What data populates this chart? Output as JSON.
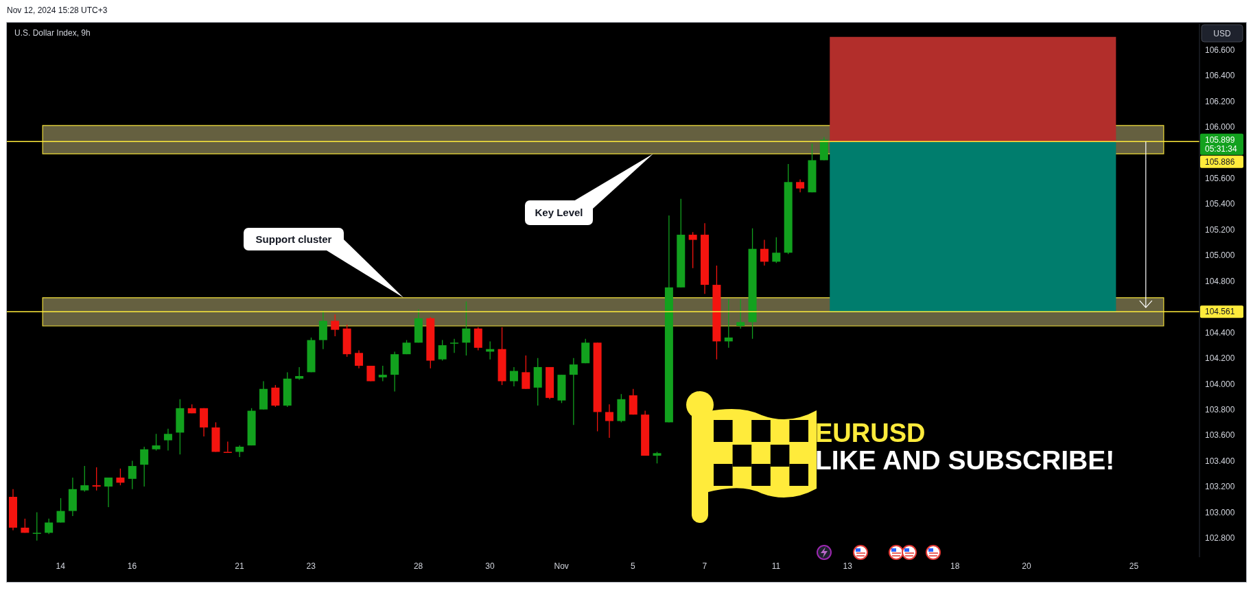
{
  "chart_data": {
    "type": "candlestick",
    "title": "U.S. Dollar Index, 9h",
    "annotations": [
      "Nov 12, 2024 15:28 UTC+3",
      "USD",
      "Support cluster",
      "Key Level",
      "EURUSD",
      "LIKE AND SUBSCRIBE!",
      "105.899",
      "05:31:34"
    ],
    "categories": [
      null,
      null,
      null,
      null,
      "14",
      null,
      null,
      null,
      null,
      null,
      "16",
      null,
      null,
      null,
      null,
      null,
      null,
      null,
      null,
      "21",
      null,
      null,
      null,
      null,
      null,
      "23",
      null,
      null,
      null,
      null,
      null,
      null,
      null,
      null,
      "28",
      null,
      null,
      null,
      null,
      null,
      "30",
      null,
      null,
      null,
      null,
      null,
      "Nov",
      null,
      null,
      null,
      null,
      null,
      "5",
      null,
      null,
      null,
      null,
      null,
      "7",
      null,
      null,
      null,
      null,
      null,
      "11",
      null,
      null,
      null,
      null,
      null,
      "13",
      null,
      null,
      null,
      null,
      null,
      null,
      null,
      null,
      "18",
      null,
      null,
      null,
      null,
      null,
      "20",
      null,
      null,
      null,
      null,
      null,
      null,
      null,
      null,
      "25",
      null,
      null,
      null,
      null,
      null
    ],
    "ohlc": [
      [
        103.12,
        103.18,
        102.86,
        102.88
      ],
      [
        102.88,
        102.95,
        102.84,
        102.84
      ],
      [
        102.84,
        103.0,
        102.78,
        102.84
      ],
      [
        102.84,
        102.95,
        102.83,
        102.92
      ],
      [
        102.92,
        103.11,
        102.92,
        103.01
      ],
      [
        103.01,
        103.27,
        102.97,
        103.18
      ],
      [
        103.17,
        103.36,
        103.16,
        103.21
      ],
      [
        103.21,
        103.35,
        103.17,
        103.2
      ],
      [
        103.2,
        103.27,
        103.04,
        103.27
      ],
      [
        103.27,
        103.34,
        103.21,
        103.23
      ],
      [
        103.26,
        103.4,
        103.18,
        103.36
      ],
      [
        103.37,
        103.51,
        103.2,
        103.49
      ],
      [
        103.49,
        103.61,
        103.48,
        103.52
      ],
      [
        103.56,
        103.65,
        103.48,
        103.61
      ],
      [
        103.62,
        103.88,
        103.45,
        103.81
      ],
      [
        103.81,
        103.84,
        103.77,
        103.77
      ],
      [
        103.81,
        103.81,
        103.59,
        103.66
      ],
      [
        103.66,
        103.7,
        103.47,
        103.47
      ],
      [
        103.47,
        103.55,
        103.47,
        103.47
      ],
      [
        103.47,
        103.52,
        103.43,
        103.51
      ],
      [
        103.52,
        103.81,
        103.52,
        103.79
      ],
      [
        103.8,
        104.02,
        103.8,
        103.96
      ],
      [
        103.97,
        103.99,
        103.82,
        103.83
      ],
      [
        103.83,
        104.09,
        103.82,
        104.04
      ],
      [
        104.04,
        104.13,
        104.03,
        104.06
      ],
      [
        104.09,
        104.36,
        104.09,
        104.34
      ],
      [
        104.34,
        104.57,
        104.27,
        104.49
      ],
      [
        104.49,
        104.54,
        104.37,
        104.42
      ],
      [
        104.43,
        104.46,
        104.21,
        104.23
      ],
      [
        104.24,
        104.26,
        104.12,
        104.14
      ],
      [
        104.14,
        104.14,
        104.02,
        104.02
      ],
      [
        104.05,
        104.14,
        104.02,
        104.07
      ],
      [
        104.07,
        104.25,
        103.94,
        104.23
      ],
      [
        104.23,
        104.34,
        104.23,
        104.32
      ],
      [
        104.32,
        104.58,
        104.32,
        104.51
      ],
      [
        104.51,
        104.52,
        104.12,
        104.18
      ],
      [
        104.19,
        104.34,
        104.18,
        104.3
      ],
      [
        104.32,
        104.35,
        104.24,
        104.32
      ],
      [
        104.32,
        104.64,
        104.22,
        104.43
      ],
      [
        104.43,
        104.44,
        104.26,
        104.28
      ],
      [
        104.25,
        104.33,
        104.19,
        104.27
      ],
      [
        104.27,
        104.44,
        103.99,
        104.02
      ],
      [
        104.02,
        104.13,
        103.98,
        104.1
      ],
      [
        104.09,
        104.22,
        103.96,
        103.96
      ],
      [
        103.97,
        104.2,
        103.83,
        104.13
      ],
      [
        104.13,
        104.13,
        103.88,
        103.89
      ],
      [
        103.87,
        104.07,
        103.85,
        104.07
      ],
      [
        104.07,
        104.2,
        103.68,
        104.15
      ],
      [
        104.16,
        104.35,
        104.16,
        104.32
      ],
      [
        104.32,
        104.32,
        103.63,
        103.78
      ],
      [
        103.78,
        103.84,
        103.58,
        103.71
      ],
      [
        103.71,
        103.92,
        103.7,
        103.88
      ],
      [
        103.91,
        103.96,
        103.76,
        103.76
      ],
      [
        103.76,
        103.79,
        103.44,
        103.44
      ],
      [
        103.44,
        103.47,
        103.38,
        103.46
      ],
      [
        103.7,
        105.31,
        103.7,
        104.75
      ],
      [
        104.75,
        105.44,
        104.75,
        105.16
      ],
      [
        105.16,
        105.18,
        104.9,
        105.12
      ],
      [
        105.16,
        105.25,
        104.7,
        104.77
      ],
      [
        104.77,
        104.92,
        104.19,
        104.33
      ],
      [
        104.33,
        104.66,
        104.28,
        104.36
      ],
      [
        104.45,
        104.66,
        104.43,
        104.48
      ],
      [
        104.48,
        105.21,
        104.35,
        105.05
      ],
      [
        105.05,
        105.12,
        104.92,
        104.95
      ],
      [
        104.95,
        105.14,
        104.94,
        105.02
      ],
      [
        105.02,
        105.71,
        105.01,
        105.57
      ],
      [
        105.57,
        105.59,
        105.49,
        105.52
      ],
      [
        105.49,
        105.87,
        105.49,
        105.74
      ],
      [
        105.74,
        105.92,
        105.74,
        105.899
      ],
      null,
      null,
      null,
      null,
      null,
      null,
      null,
      null,
      null,
      null,
      null,
      null,
      null,
      null,
      null,
      null,
      null,
      null,
      null,
      null,
      null,
      null,
      null,
      null,
      null,
      null,
      null,
      null,
      null,
      null,
      null
    ],
    "colors": [
      "#f4140f",
      "#f4140f",
      "#12a11e",
      "#12a11e",
      "#12a11e",
      "#12a11e",
      "#12a11e",
      "#f4140f",
      "#12a11e",
      "#f4140f",
      "#12a11e",
      "#12a11e",
      "#12a11e",
      "#12a11e",
      "#12a11e",
      "#f4140f",
      "#f4140f",
      "#f4140f",
      "#f4140f",
      "#12a11e",
      "#12a11e",
      "#12a11e",
      "#f4140f",
      "#12a11e",
      "#12a11e",
      "#12a11e",
      "#12a11e",
      "#f4140f",
      "#f4140f",
      "#f4140f",
      "#f4140f",
      "#12a11e",
      "#12a11e",
      "#12a11e",
      "#12a11e",
      "#f4140f",
      "#12a11e",
      "#12a11e",
      "#12a11e",
      "#f4140f",
      "#12a11e",
      "#f4140f",
      "#12a11e",
      "#f4140f",
      "#12a11e",
      "#f4140f",
      "#12a11e",
      "#12a11e",
      "#12a11e",
      "#f4140f",
      "#f4140f",
      "#12a11e",
      "#f4140f",
      "#f4140f",
      "#12a11e",
      "#12a11e",
      "#12a11e",
      "#f4140f",
      "#f4140f",
      "#f4140f",
      "#12a11e",
      "#12a11e",
      "#12a11e",
      "#f4140f",
      "#12a11e",
      "#12a11e",
      "#f4140f",
      "#12a11e",
      "#12a11e",
      null,
      null,
      null,
      null,
      null,
      null,
      null,
      null,
      null,
      null,
      null,
      null,
      null,
      null,
      null,
      null,
      null,
      null,
      null,
      null,
      null,
      null,
      null,
      null,
      null,
      null,
      null,
      null,
      null,
      null,
      null
    ],
    "ylim": [
      102.65,
      106.8
    ],
    "yticks": [
      {
        "value": 102.8,
        "label": "102.800"
      },
      {
        "value": 103.0,
        "label": "103.000"
      },
      {
        "value": 103.2,
        "label": "103.200"
      },
      {
        "value": 103.4,
        "label": "103.400"
      },
      {
        "value": 103.6,
        "label": "103.600"
      },
      {
        "value": 103.8,
        "label": "103.800"
      },
      {
        "value": 104.0,
        "label": "104.000"
      },
      {
        "value": 104.2,
        "label": "104.200"
      },
      {
        "value": 104.4,
        "label": "104.400"
      },
      {
        "value": 104.8,
        "label": "104.800"
      },
      {
        "value": 105.0,
        "label": "105.000"
      },
      {
        "value": 105.2,
        "label": "105.200"
      },
      {
        "value": 105.4,
        "label": "105.400"
      },
      {
        "value": 105.6,
        "label": "105.600"
      },
      {
        "value": 106.0,
        "label": "106.000"
      },
      {
        "value": 106.2,
        "label": "106.200"
      },
      {
        "value": 106.4,
        "label": "106.400"
      },
      {
        "value": 106.6,
        "label": "106.600"
      }
    ],
    "ref_lines": [
      {
        "axis": "y",
        "value": 105.886,
        "label": "105.886",
        "color": "#ffeb3b"
      },
      {
        "axis": "y",
        "value": 104.561,
        "label": "104.561",
        "color": "#ffeb3b"
      }
    ],
    "bands": [
      {
        "axis": "y",
        "from": 105.79,
        "to": 106.01,
        "color": "#656040"
      },
      {
        "axis": "y",
        "from": 104.45,
        "to": 104.67,
        "color": "#656040"
      },
      {
        "axis": "y",
        "from": 105.886,
        "to": 106.7,
        "color": "#b22e2b"
      },
      {
        "axis": "y",
        "from": 104.561,
        "to": 105.886,
        "color": "#007d6d"
      }
    ]
  }
}
